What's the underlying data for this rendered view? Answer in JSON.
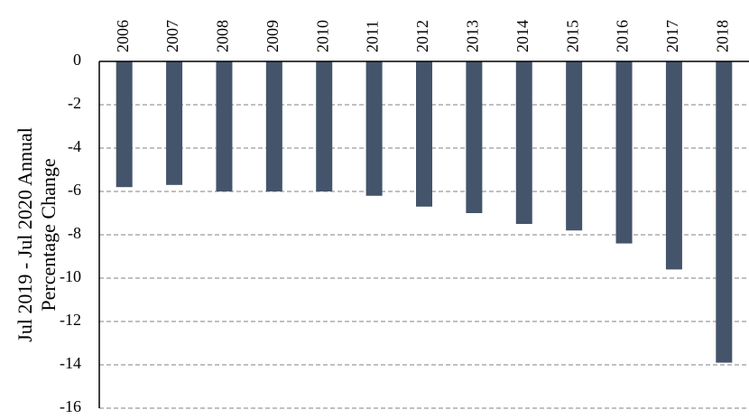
{
  "chart_data": {
    "type": "bar",
    "y_label": [
      "Jul 2019 - Jul 2020 Annual",
      "Percentage Change"
    ],
    "categories": [
      "2006",
      "2007",
      "2008",
      "2009",
      "2010",
      "2011",
      "2012",
      "2013",
      "2014",
      "2015",
      "2016",
      "2017",
      "2018"
    ],
    "values": [
      -5.8,
      -5.7,
      -6.0,
      -6.0,
      -6.0,
      -6.2,
      -6.7,
      -7.0,
      -7.5,
      -7.8,
      -8.4,
      -9.6,
      -13.9
    ],
    "color": "#44546a",
    "ylim": [
      -16,
      0
    ],
    "yticks": [
      0,
      -2,
      -4,
      -6,
      -8,
      -10,
      -12,
      -14,
      -16
    ],
    "grid": true
  }
}
